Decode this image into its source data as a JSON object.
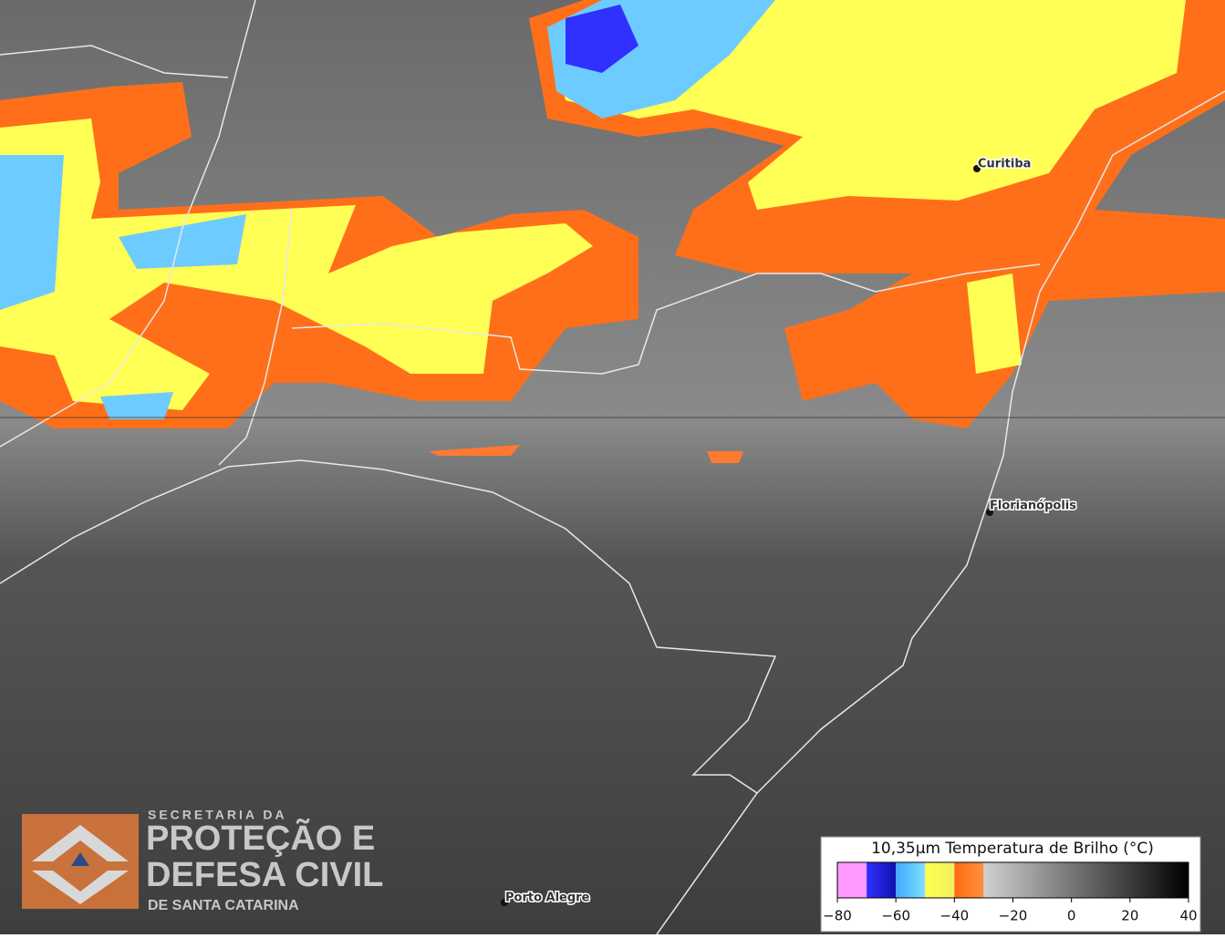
{
  "cities": [
    {
      "label": "Curitiba"
    },
    {
      "label": "Florianópolis"
    },
    {
      "label": "Porto Alegre"
    }
  ],
  "logo": {
    "line1": "SECRETARIA DA",
    "line2": "PROTEÇÃO E",
    "line3": "DEFESA CIVIL",
    "line4": "DE SANTA CATARINA"
  },
  "colorbar": {
    "title": "10,35μm Temperatura de Brilho (°C)",
    "lim": [
      -80,
      40
    ],
    "ticks": [
      {
        "value": -80,
        "label": "−80"
      },
      {
        "value": -60,
        "label": "−60"
      },
      {
        "value": -40,
        "label": "−40"
      },
      {
        "value": -20,
        "label": "−20"
      },
      0,
      20,
      40
    ],
    "segments": [
      {
        "from": -80,
        "to": -70,
        "color": "#ff99ff",
        "color_end": "#ff99ff"
      },
      {
        "from": -70,
        "to": -60,
        "color": "#3030ff",
        "color_end": "#1010b0"
      },
      {
        "from": -60,
        "to": -50,
        "color": "#40a8ff",
        "color_end": "#80e0ff"
      },
      {
        "from": -50,
        "to": -40,
        "color": "#ffff50",
        "color_end": "#f0f060"
      },
      {
        "from": -40,
        "to": -30,
        "color": "#ff6a10",
        "color_end": "#ff9040"
      },
      {
        "from": -30,
        "to": 40,
        "color": "#d0d0d0",
        "color_end": "#000000"
      }
    ]
  }
}
